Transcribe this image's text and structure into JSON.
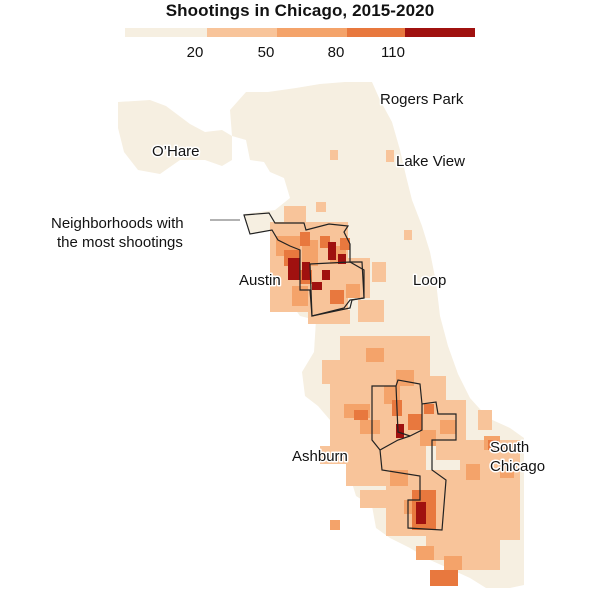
{
  "title": "Shootings in Chicago, 2015-2020",
  "legend": {
    "colors": [
      "#f6efe1",
      "#f8c49a",
      "#f4a36a",
      "#e8783e",
      "#a0110f"
    ],
    "ticks": [
      "20",
      "50",
      "80",
      "110"
    ]
  },
  "labels": {
    "rogers_park": "Rogers Park",
    "ohare": "O’Hare",
    "lake_view": "Lake View",
    "annotation_line1": "Neighborhoods with",
    "annotation_line2": "the most shootings",
    "austin": "Austin",
    "loop": "Loop",
    "ashburn": "Ashburn",
    "south_chicago_line1": "South",
    "south_chicago_line2": "Chicago"
  }
}
